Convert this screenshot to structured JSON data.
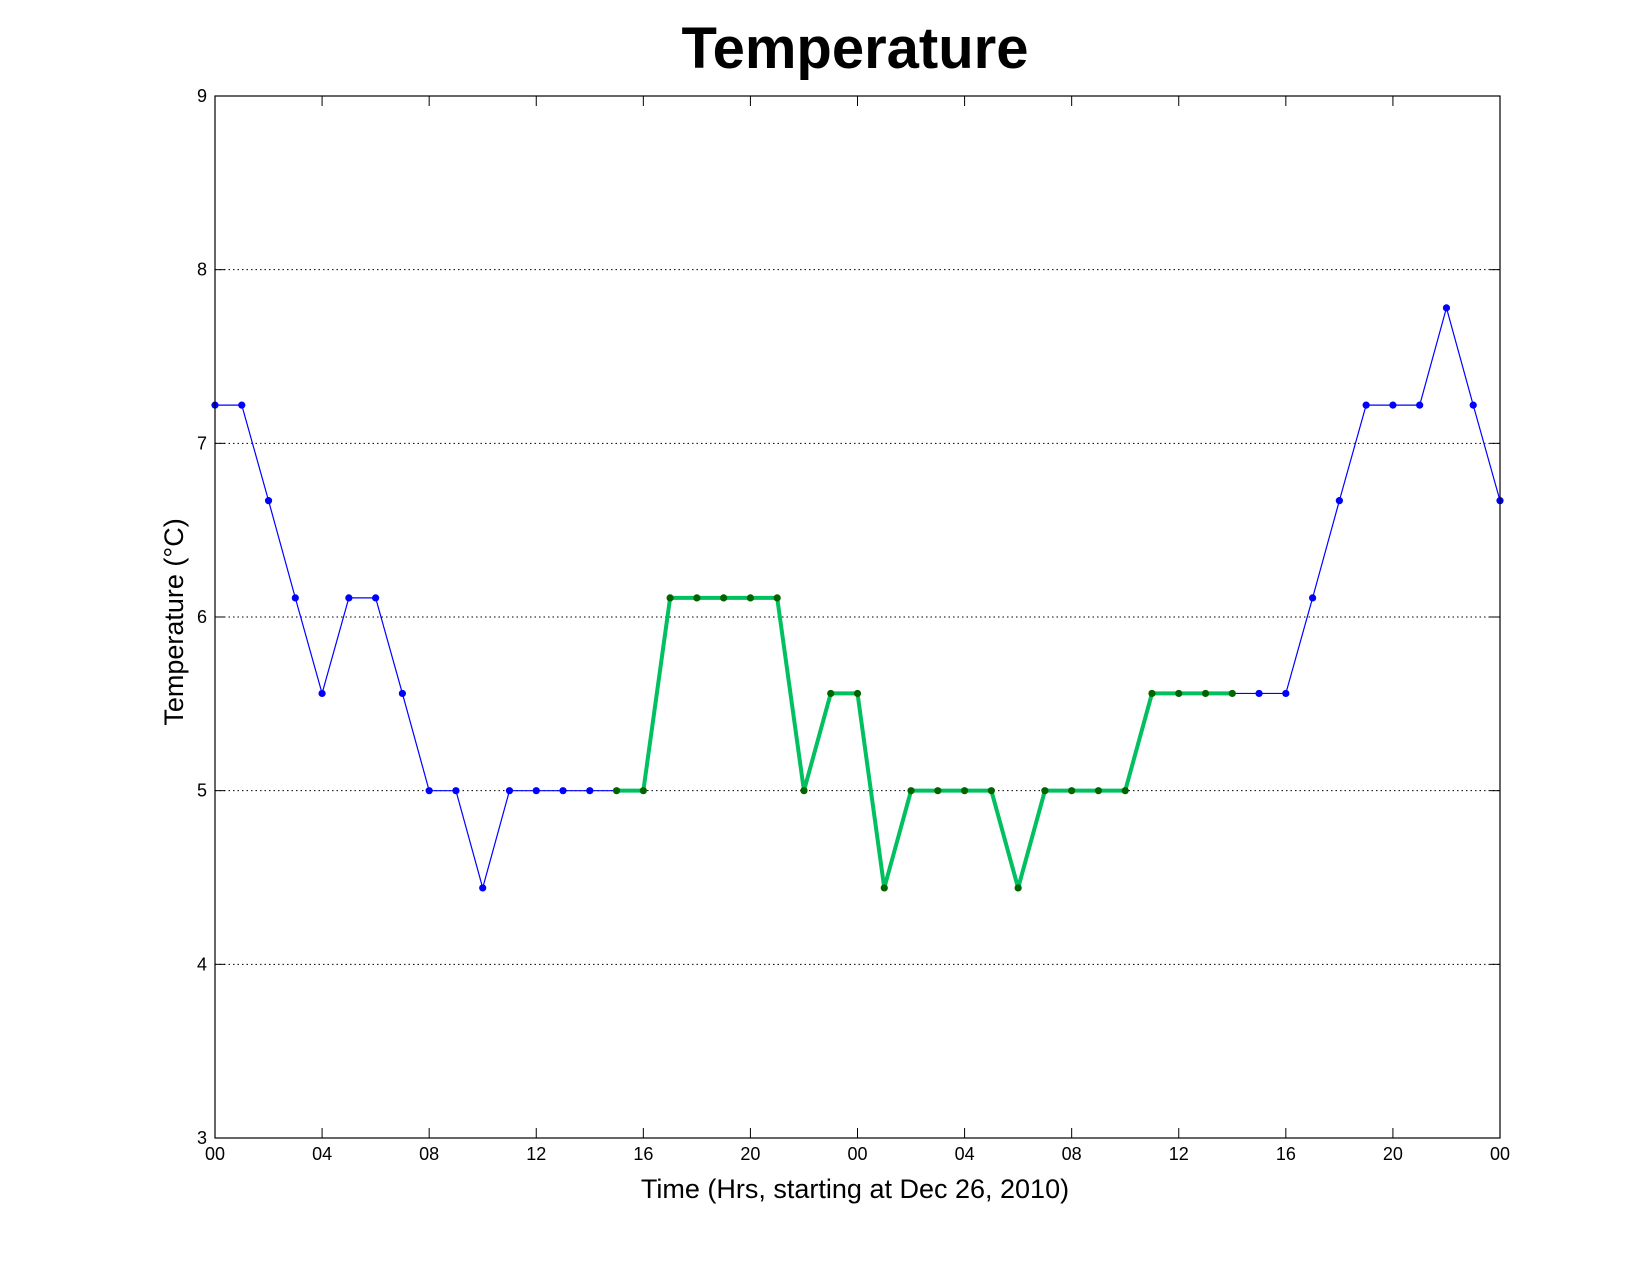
{
  "chart_data": {
    "type": "line",
    "title": "Temperature",
    "xlabel": "Time (Hrs, starting at Dec 26, 2010)",
    "ylabel": "Temperature (°C)",
    "xlim": [
      0,
      48
    ],
    "ylim": [
      3,
      9
    ],
    "x_ticks": [
      0,
      4,
      8,
      12,
      16,
      20,
      24,
      28,
      32,
      36,
      40,
      44,
      48
    ],
    "x_tick_labels": [
      "00",
      "04",
      "08",
      "12",
      "16",
      "20",
      "00",
      "04",
      "08",
      "12",
      "16",
      "20",
      "00"
    ],
    "y_ticks": [
      3,
      4,
      5,
      6,
      7,
      8,
      9
    ],
    "y_tick_labels": [
      "3",
      "4",
      "5",
      "6",
      "7",
      "8",
      "9"
    ],
    "grid": "horizontal dotted",
    "colors": {
      "series": "#0000ff",
      "highlight_line": "#00c060",
      "highlight_marker": "#006400"
    },
    "series": [
      {
        "x": [
          0,
          1,
          2,
          3,
          4,
          5,
          6,
          7,
          8,
          9,
          10,
          11,
          12,
          13,
          14,
          15,
          16,
          17,
          18,
          19,
          20,
          21,
          22,
          23,
          24,
          25,
          26,
          27,
          28,
          29,
          30,
          31,
          32,
          33,
          34,
          35,
          36,
          37,
          38,
          39,
          40,
          41,
          42,
          43,
          44,
          45,
          46,
          47,
          48
        ],
        "values": [
          7.22,
          7.22,
          6.67,
          6.11,
          5.56,
          6.11,
          6.11,
          5.56,
          5.0,
          5.0,
          4.44,
          5.0,
          5.0,
          5.0,
          5.0,
          5.0,
          5.0,
          6.11,
          6.11,
          6.11,
          6.11,
          6.11,
          5.0,
          5.56,
          5.56,
          4.44,
          5.0,
          5.0,
          5.0,
          5.0,
          4.44,
          5.0,
          5.0,
          5.0,
          5.0,
          5.56,
          5.56,
          5.56,
          5.56,
          5.56,
          5.56,
          6.11,
          6.67,
          7.22,
          7.22,
          7.22,
          7.78,
          7.22,
          6.67
        ]
      }
    ],
    "highlight": {
      "x_start": 15,
      "x_end": 38
    }
  }
}
